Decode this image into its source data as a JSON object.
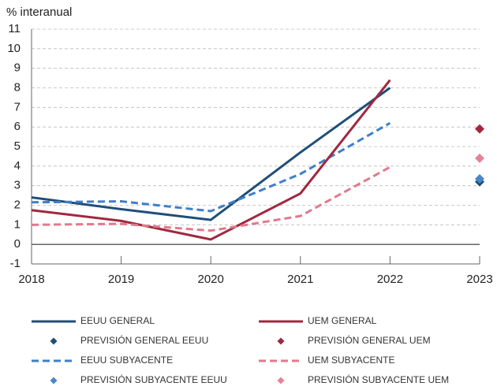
{
  "chart_data": {
    "type": "line",
    "y_label": "% interanual",
    "x": [
      2018,
      2019,
      2020,
      2021,
      2022,
      2023
    ],
    "xlim": [
      2018,
      2023
    ],
    "xticks": [
      2018,
      2019,
      2020,
      2021,
      2022,
      2023
    ],
    "ylim": [
      -1,
      11
    ],
    "yticks": [
      -1,
      0,
      1,
      2,
      3,
      4,
      5,
      6,
      7,
      8,
      9,
      10,
      11
    ],
    "grid": true,
    "series": [
      {
        "name": "EEUU GENERAL",
        "color": "#1f4e79",
        "style": "solid",
        "values": [
          2.4,
          1.8,
          1.25,
          4.7,
          8.0,
          null
        ]
      },
      {
        "name": "PREVISIÓN GENERAL EEUU",
        "color": "#1f4e79",
        "style": "marker",
        "values": [
          null,
          null,
          null,
          null,
          null,
          3.2
        ]
      },
      {
        "name": "EEUU SUBYACENTE",
        "color": "#3f7fc8",
        "style": "dashed",
        "values": [
          2.15,
          2.2,
          1.7,
          3.6,
          6.2,
          null
        ]
      },
      {
        "name": "PREVISIÓN SUBYACENTE EEUU",
        "color": "#4a86c8",
        "style": "marker",
        "values": [
          null,
          null,
          null,
          null,
          null,
          3.35
        ]
      },
      {
        "name": "UEM GENERAL",
        "color": "#a0283f",
        "style": "solid",
        "values": [
          1.75,
          1.2,
          0.25,
          2.6,
          8.4,
          null
        ]
      },
      {
        "name": "PREVISIÓN GENERAL UEM",
        "color": "#a0283f",
        "style": "marker",
        "values": [
          null,
          null,
          null,
          null,
          null,
          5.9
        ]
      },
      {
        "name": "UEM SUBYACENTE",
        "color": "#e07a8a",
        "style": "dashed",
        "values": [
          1.0,
          1.05,
          0.7,
          1.45,
          3.95,
          null
        ]
      },
      {
        "name": "PREVISIÓN SUBYACENTE UEM",
        "color": "#e58396",
        "style": "marker",
        "values": [
          null,
          null,
          null,
          null,
          null,
          4.4
        ]
      }
    ]
  }
}
